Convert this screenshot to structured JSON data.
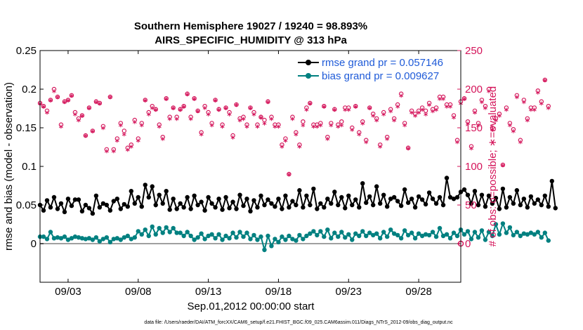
{
  "colors": {
    "rmse": "#000000",
    "bias": "#008080",
    "obs": "#d4145a",
    "legend_text": "#1f5bd8",
    "zero_line": "#a0a0a0"
  },
  "chart_data": {
    "type": "line",
    "title": "Southern Hemisphere 19027 / 19240 = 98.893%",
    "subtitle": "AIRS_SPECIFIC_HUMIDITY @ 313 hPa",
    "xlabel": "Sep.01,2012 00:00:00 start",
    "ylabel_left": "rmse and bias (model - observation)",
    "ylabel_right": "# of obs: o=possible; ∗=evaluated",
    "footnote": "data file: /Users/raeder/DAI/ATM_forcXX/CAM6_setup/f.e21.FHIST_BGC.f09_025.CAM6assim.011/Diags_NTrS_2012-09/obs_diag_output.nc",
    "x_range_days": [
      0.5,
      30.5
    ],
    "x_ticks": [
      {
        "day": 2.5,
        "label": "09/03"
      },
      {
        "day": 7.5,
        "label": "09/08"
      },
      {
        "day": 12.5,
        "label": "09/13"
      },
      {
        "day": 17.5,
        "label": "09/18"
      },
      {
        "day": 22.5,
        "label": "09/23"
      },
      {
        "day": 27.5,
        "label": "09/28"
      }
    ],
    "y_left_range": [
      -0.05,
      0.25
    ],
    "y_left_ticks": [
      "0",
      "0.05",
      "0.1",
      "0.15",
      "0.2",
      "0.25"
    ],
    "y_left_tick_values": [
      0,
      0.05,
      0.1,
      0.15,
      0.2,
      0.25
    ],
    "y_right_range": [
      -50,
      250
    ],
    "y_right_ticks": [
      "0",
      "50",
      "100",
      "150",
      "200",
      "250"
    ],
    "y_right_tick_values": [
      0,
      50,
      100,
      150,
      200,
      250
    ],
    "legend": [
      {
        "name": "rmse",
        "label": "rmse grand pr = 0.057146"
      },
      {
        "name": "bias",
        "label": "bias grand pr = 0.009627"
      }
    ],
    "start_day": 0.5,
    "step_days": 0.25,
    "series": [
      {
        "name": "rmse",
        "values": [
          0.05,
          0.043,
          0.056,
          0.047,
          0.06,
          0.045,
          0.052,
          0.041,
          0.058,
          0.049,
          0.057,
          0.057,
          0.042,
          0.05,
          0.046,
          0.039,
          0.062,
          0.047,
          0.052,
          0.05,
          0.043,
          0.055,
          0.058,
          0.045,
          0.051,
          0.048,
          0.068,
          0.052,
          0.06,
          0.048,
          0.076,
          0.06,
          0.074,
          0.05,
          0.063,
          0.052,
          0.068,
          0.044,
          0.058,
          0.045,
          0.052,
          0.047,
          0.06,
          0.045,
          0.062,
          0.05,
          0.054,
          0.043,
          0.06,
          0.052,
          0.047,
          0.058,
          0.044,
          0.06,
          0.046,
          0.054,
          0.045,
          0.063,
          0.049,
          0.058,
          0.042,
          0.056,
          0.047,
          0.062,
          0.05,
          0.057,
          0.052,
          0.048,
          0.058,
          0.045,
          0.062,
          0.047,
          0.055,
          0.05,
          0.069,
          0.047,
          0.062,
          0.05,
          0.071,
          0.045,
          0.052,
          0.047,
          0.058,
          0.052,
          0.067,
          0.05,
          0.06,
          0.046,
          0.062,
          0.05,
          0.057,
          0.047,
          0.078,
          0.053,
          0.061,
          0.05,
          0.074,
          0.052,
          0.063,
          0.048,
          0.058,
          0.06,
          0.055,
          0.049,
          0.07,
          0.053,
          0.058,
          0.047,
          0.061,
          0.057,
          0.051,
          0.066,
          0.058,
          0.052,
          0.06,
          0.05,
          0.085,
          0.06,
          0.058,
          0.06,
          0.067,
          0.07,
          0.063,
          0.052,
          0.068,
          0.05,
          0.063,
          0.048,
          0.062,
          0.052,
          0.059,
          0.045,
          0.071,
          0.047,
          0.06,
          0.052,
          0.069,
          0.05,
          0.058,
          0.047,
          0.061,
          0.052,
          0.057,
          0.05,
          0.062,
          0.048,
          0.081,
          0.046
        ]
      },
      {
        "name": "bias",
        "values": [
          0.009,
          0.009,
          0.006,
          0.015,
          0.007,
          0.008,
          0.007,
          0.009,
          0.005,
          0.007,
          0.009,
          0.008,
          0.007,
          0.006,
          0.007,
          0.005,
          0.008,
          0.003,
          0.006,
          0.008,
          0.002,
          0.006,
          0.007,
          0.005,
          0.008,
          0.01,
          0.006,
          0.008,
          0.016,
          0.012,
          0.018,
          0.01,
          0.022,
          0.012,
          0.02,
          0.014,
          0.021,
          0.015,
          0.02,
          0.014,
          0.014,
          0.01,
          0.015,
          0.01,
          0.005,
          0.008,
          0.013,
          0.006,
          0.01,
          0.012,
          0.007,
          0.012,
          0.005,
          0.01,
          0.007,
          0.014,
          0.008,
          0.015,
          0.009,
          0.014,
          0.006,
          0.011,
          0.005,
          0.009,
          -0.008,
          0.01,
          -0.003,
          0.006,
          0.002,
          0.009,
          0.005,
          0.01,
          0.006,
          0.004,
          0.011,
          0.006,
          0.01,
          0.013,
          0.016,
          0.011,
          0.016,
          0.009,
          0.018,
          0.007,
          0.014,
          0.009,
          0.015,
          0.008,
          0.012,
          0.005,
          0.013,
          0.01,
          0.016,
          0.01,
          0.014,
          0.011,
          0.013,
          0.007,
          0.015,
          0.009,
          0.018,
          0.013,
          0.011,
          0.007,
          0.017,
          0.011,
          0.014,
          0.007,
          0.013,
          0.01,
          0.012,
          0.011,
          0.015,
          0.009,
          0.02,
          0.01,
          0.012,
          0.007,
          0.014,
          0.01,
          0.018,
          0.012,
          0.016,
          0.006,
          0.015,
          0.008,
          0.017,
          0.005,
          0.015,
          0.01,
          0.025,
          0.012,
          0.026,
          0.014,
          0.021,
          0.011,
          0.015,
          0.01,
          0.013,
          0.012,
          0.014,
          0.012,
          0.015,
          0.008,
          0.014,
          0.004
        ]
      },
      {
        "name": "obs_possible",
        "values": [
          182,
          178,
          172,
          186,
          200,
          190,
          154,
          184,
          186,
          192,
          170,
          162,
          166,
          140,
          176,
          146,
          184,
          182,
          152,
          122,
          190,
          122,
          136,
          156,
          146,
          124,
          128,
          160,
          136,
          156,
          186,
          170,
          178,
          174,
          154,
          138,
          188,
          164,
          176,
          164,
          174,
          178,
          194,
          164,
          188,
          172,
          144,
          178,
          170,
          156,
          186,
          174,
          154,
          176,
          170,
          140,
          180,
          162,
          164,
          154,
          176,
          170,
          154,
          164,
          160,
          184,
          164,
          154,
          154,
          128,
          136,
          90,
          164,
          144,
          128,
          158,
          176,
          182,
          154,
          154,
          156,
          178,
          138,
          156,
          174,
          154,
          158,
          176,
          176,
          150,
          178,
          144,
          158,
          134,
          176,
          168,
          162,
          128,
          170,
          138,
          174,
          162,
          180,
          194,
          156,
          124,
          172,
          168,
          172,
          176,
          172,
          182,
          174,
          176,
          190,
          190,
          180,
          180,
          166,
          134,
          184,
          188,
          158,
          126,
          172,
          156,
          186,
          178,
          200,
          150,
          162,
          168,
          102,
          176,
          156,
          148,
          192,
          134,
          186,
          162,
          176,
          176,
          198,
          184,
          212,
          178
        ]
      },
      {
        "name": "obs_evaluated",
        "values": [
          180,
          176,
          168,
          184,
          196,
          188,
          150,
          182,
          184,
          190,
          166,
          158,
          164,
          138,
          174,
          144,
          182,
          180,
          148,
          118,
          188,
          118,
          132,
          152,
          140,
          120,
          124,
          156,
          132,
          152,
          184,
          166,
          174,
          172,
          150,
          134,
          186,
          160,
          174,
          160,
          172,
          176,
          192,
          160,
          186,
          170,
          140,
          174,
          166,
          152,
          184,
          172,
          150,
          174,
          166,
          136,
          178,
          158,
          160,
          150,
          174,
          166,
          150,
          162,
          154,
          182,
          160,
          150,
          150,
          124,
          132,
          88,
          160,
          140,
          124,
          152,
          172,
          180,
          150,
          150,
          152,
          176,
          134,
          152,
          172,
          150,
          152,
          172,
          172,
          146,
          176,
          140,
          154,
          130,
          174,
          164,
          158,
          124,
          166,
          134,
          170,
          158,
          176,
          190,
          152,
          122,
          168,
          164,
          168,
          172,
          166,
          178,
          170,
          172,
          186,
          186,
          176,
          176,
          162,
          130,
          180,
          186,
          154,
          122,
          168,
          152,
          182,
          174,
          196,
          146,
          158,
          164,
          100,
          172,
          152,
          144,
          188,
          130,
          182,
          158,
          172,
          172,
          194,
          180,
          210,
          174
        ]
      }
    ]
  }
}
